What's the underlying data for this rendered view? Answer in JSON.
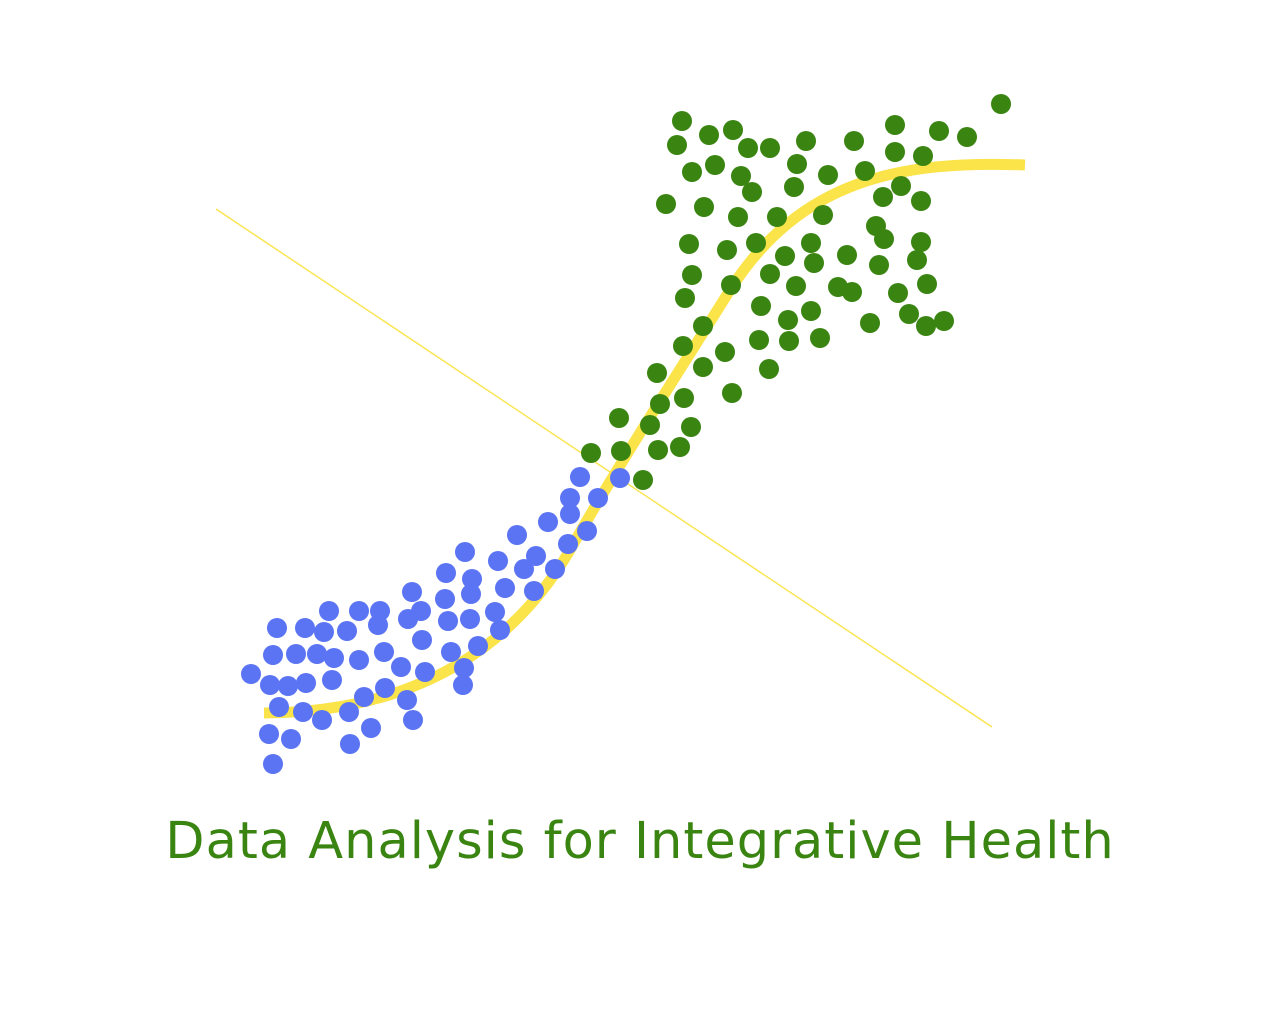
{
  "title": "Data Analysis for Integrative Health",
  "colors": {
    "blue_points": "#5b74f3",
    "green_points": "#3a8512",
    "curve": "#fae44a",
    "line": "#fae44a",
    "title": "#3a8512",
    "background": "#ffffff"
  }
}
